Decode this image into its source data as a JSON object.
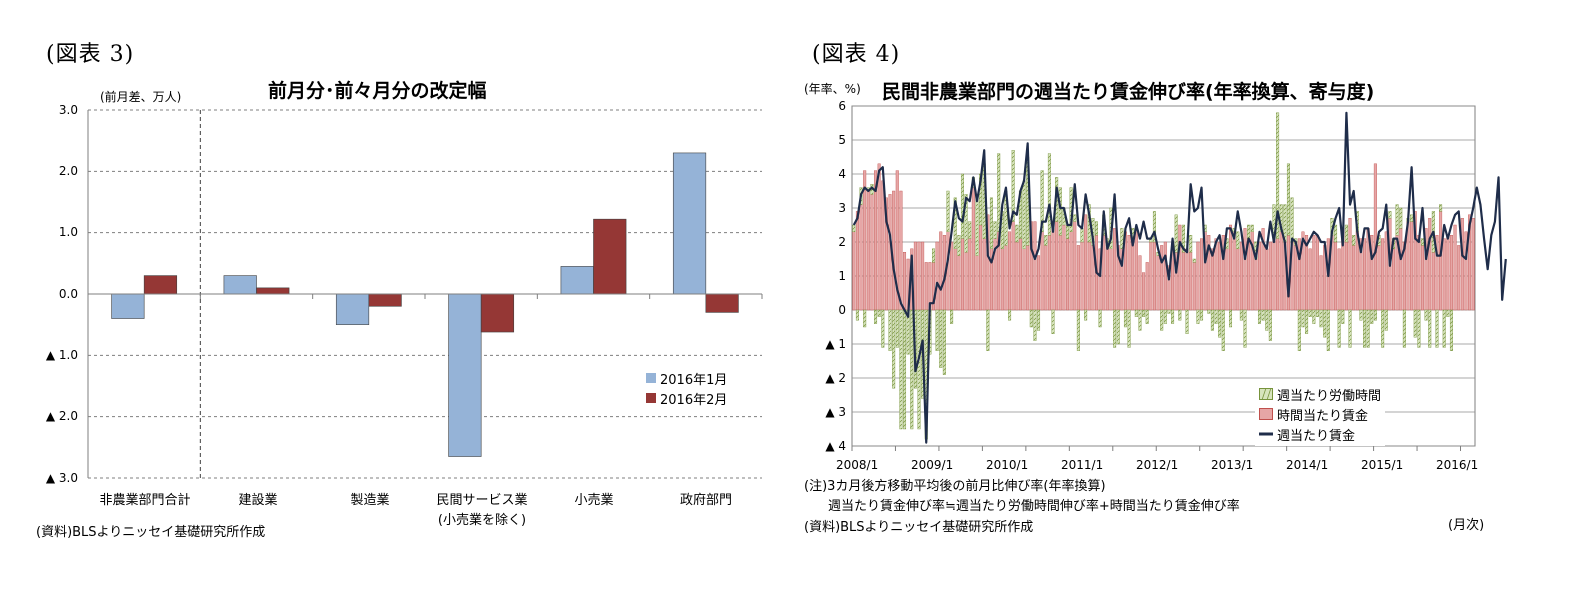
{
  "left": {
    "fig_label": "(図表 3)",
    "title": "前月分･前々月分の改定幅",
    "unit": "(前月差、万人)",
    "source": "(資料)BLSよりニッセイ基礎研究所作成",
    "ytick_labels": [
      "3.0",
      "2.0",
      "1.0",
      "0.0",
      "▲ 1.0",
      "▲ 2.0",
      "▲ 3.0"
    ],
    "category_labels": [
      "非農業部門合計",
      "建設業",
      "製造業",
      "民間サービス業",
      "小売業",
      "政府部門"
    ],
    "category_sublabel": "(小売業を除く)",
    "legend": [
      "2016年1月",
      "2016年2月"
    ]
  },
  "right": {
    "fig_label": "(図表 4)",
    "title": "民間非農業部門の週当たり賃金伸び率(年率換算、寄与度)",
    "unit": "(年率、%)",
    "ytick_labels": [
      "6",
      "5",
      "4",
      "3",
      "2",
      "1",
      "0",
      "▲ 1",
      "▲ 2",
      "▲ 3",
      "▲ 4"
    ],
    "xtick_labels": [
      "2008/1",
      "2009/1",
      "2010/1",
      "2011/1",
      "2012/1",
      "2013/1",
      "2014/1",
      "2015/1",
      "2016/1"
    ],
    "legend": [
      "週当たり労働時間",
      "時間当たり賃金",
      "週当たり賃金"
    ],
    "note1": "(注)3カ月後方移動平均後の前月比伸び率(年率換算)",
    "note2": "週当たり賃金伸び率≒週当たり労働時間伸び率+時間当たり賃金伸び率",
    "source": "(資料)BLSよりニッセイ基礎研究所作成",
    "month_label": "(月次)"
  },
  "colors": {
    "jan": "#95b3d7",
    "feb": "#953735",
    "hours_fill": "#d7e4bd",
    "hours_stroke": "#77933c",
    "hourly_fill": "#e6a6a6",
    "hourly_stroke": "#c0504d",
    "weekly_line": "#1f2d4a"
  },
  "chart_data": [
    {
      "type": "bar",
      "title": "前月分･前々月分の改定幅",
      "ylabel": "(前月差、万人)",
      "ylim": [
        -3.0,
        3.0
      ],
      "categories": [
        "非農業部門合計",
        "建設業",
        "製造業",
        "民間サービス業(小売業を除く)",
        "小売業",
        "政府部門"
      ],
      "series": [
        {
          "name": "2016年1月",
          "values": [
            -0.4,
            0.3,
            -0.5,
            -2.65,
            0.45,
            2.3
          ]
        },
        {
          "name": "2016年2月",
          "values": [
            0.3,
            0.1,
            -0.2,
            -0.62,
            1.22,
            -0.3
          ]
        }
      ],
      "legend_position": "bottom-right",
      "grid": true
    },
    {
      "type": "bar",
      "title": "民間非農業部門の週当たり賃金伸び率(年率換算、寄与度)",
      "ylabel": "(年率、%)",
      "xlabel": "(月次)",
      "ylim": [
        -4,
        6
      ],
      "x_start": "2008/1",
      "x_end": "2016/2",
      "series": [
        {
          "name": "週当たり労働時間",
          "type": "bar",
          "values": [
            0.2,
            -0.3,
            0.5,
            -0.5,
            0.1,
            0.3,
            -0.4,
            -0.2,
            -1.1,
            0.0,
            -1.2,
            -2.3,
            -1.1,
            -3.5,
            -3.5,
            -1.3,
            -3.5,
            -2.3,
            -3.5,
            -2.6,
            -3.8,
            -1.3,
            0.4,
            -1.2,
            -1.7,
            -1.9,
            1.2,
            -0.4,
            1.5,
            0.6,
            1.9,
            1.7,
            0.5,
            0.3,
            1.8,
            1.5,
            2.2,
            -1.2,
            1.5,
            0.5,
            2.3,
            1.1,
            1.6,
            -0.3,
            2.1,
            0.5,
            1.4,
            2.0,
            2.6,
            -0.5,
            -0.9,
            -0.6,
            1.8,
            0.3,
            2.4,
            -0.7,
            1.3,
            1.4,
            0.5,
            0.4,
            1.3,
            0.2,
            -1.2,
            0.4,
            -0.3,
            1.1,
            0.8,
            0.4,
            -0.5,
            0.6,
            0.2,
            1.2,
            -1.1,
            -1.0,
            0.6,
            -0.5,
            -1.1,
            0.3,
            -0.2,
            -0.6,
            -0.2,
            -0.4,
            0.1,
            0.9,
            0.1,
            -0.6,
            -0.4,
            -0.1,
            -0.4,
            1.1,
            -0.3,
            0.8,
            -0.7,
            0.5,
            0.1,
            -0.4,
            -0.3,
            0.2,
            -0.1,
            -0.6,
            -0.4,
            -0.8,
            -1.2,
            0.3,
            -0.5,
            0.1,
            0.5,
            -0.3,
            -1.1,
            0.4,
            0.2,
            0.5,
            -0.4,
            -0.3,
            -0.6,
            -0.9,
            1.0,
            3.7,
            0.8,
            1.1,
            2.1,
            1.3,
            0.2,
            -1.2,
            -0.5,
            -0.7,
            -0.2,
            -0.4,
            -0.2,
            -0.5,
            -0.8,
            -1.2,
            0.5,
            0.5,
            -1.1,
            -0.4,
            0.5,
            -1.1,
            0.3,
            0.6,
            -0.3,
            -1.1,
            -1.1,
            -0.4,
            -0.3,
            0.3,
            -1.1,
            -0.6,
            0.2,
            0.3,
            0.9,
            0.6,
            -1.1,
            0.1,
            0.2,
            -0.8,
            -1.1,
            0.2,
            -0.3,
            -1.1,
            1.2,
            -1.1,
            0.2,
            -1.1,
            -0.2,
            -1.2
          ]
        },
        {
          "name": "時間当たり賃金",
          "type": "bar",
          "values": [
            2.3,
            2.9,
            3.1,
            4.1,
            3.5,
            3.4,
            4.1,
            4.3,
            3.8,
            3.3,
            3.4,
            3.5,
            4.1,
            3.5,
            1.7,
            1.5,
            1.8,
            2.0,
            2.0,
            2.0,
            1.4,
            1.4,
            1.4,
            2.0,
            2.3,
            2.2,
            2.3,
            2.0,
            1.8,
            1.6,
            2.1,
            1.7,
            2.1,
            3.6,
            1.6,
            2.5,
            2.1,
            2.8,
            1.8,
            2.1,
            2.3,
            1.8,
            1.9,
            2.3,
            2.6,
            2.0,
            2.1,
            1.8,
            1.9,
            2.6,
            2.6,
            1.6,
            2.3,
            1.9,
            2.2,
            2.4,
            2.6,
            2.2,
            2.5,
            2.1,
            2.3,
            2.6,
            1.9,
            2.0,
            2.8,
            2.0,
            1.9,
            2.2,
            1.8,
            2.2,
            1.9,
            1.8,
            2.4,
            1.9,
            1.8,
            2.3,
            2.2,
            2.1,
            2.4,
            1.6,
            1.1,
            1.4,
            2.0,
            2.0,
            1.6,
            1.9,
            2.0,
            1.3,
            1.9,
            1.7,
            2.5,
            1.7,
            1.8,
            1.7,
            1.4,
            2.0,
            2.1,
            2.3,
            2.2,
            1.8,
            2.1,
            2.0,
            2.2,
            1.8,
            2.5,
            2.3,
            1.8,
            2.0,
            2.4,
            2.1,
            2.3,
            1.5,
            2.0,
            2.4,
            1.8,
            2.0,
            2.1,
            2.1,
            2.3,
            2.0,
            2.2,
            2.0,
            1.9,
            2.1,
            2.3,
            2.2,
            1.8,
            2.2,
            2.2,
            1.6,
            1.9,
            2.1,
            2.2,
            2.0,
            1.8,
            2.4,
            2.0,
            2.7,
            1.9,
            2.3,
            2.1,
            2.1,
            2.4,
            2.2,
            4.3,
            1.9,
            2.1,
            2.3,
            2.7,
            1.8,
            2.2,
            2.4,
            2.0,
            2.6,
            2.6,
            2.9,
            2.2,
            1.9,
            2.4,
            2.7,
            1.7,
            2.2,
            2.9,
            2.1,
            2.2,
            2.2,
            2.5,
            1.9,
            2.7,
            2.3,
            2.8,
            2.7
          ]
        },
        {
          "name": "週当たり賃金",
          "type": "line",
          "values": [
            2.5,
            2.7,
            3.4,
            3.6,
            3.5,
            3.6,
            3.5,
            4.1,
            4.2,
            2.6,
            2.2,
            1.2,
            0.6,
            0.2,
            0.0,
            -0.2,
            1.6,
            -1.8,
            -1.4,
            -0.9,
            -3.9,
            0.2,
            0.2,
            0.8,
            0.6,
            0.9,
            1.5,
            2.3,
            3.2,
            2.7,
            2.6,
            3.3,
            3.2,
            3.9,
            3.2,
            3.8,
            4.7,
            1.6,
            1.4,
            1.8,
            1.9,
            3.1,
            3.6,
            2.4,
            2.9,
            2.8,
            3.5,
            3.8,
            4.9,
            1.8,
            1.5,
            1.8,
            2.6,
            2.6,
            3.1,
            2.3,
            3.6,
            3.0,
            3.0,
            2.5,
            2.5,
            3.7,
            2.5,
            2.4,
            3.4,
            2.8,
            2.1,
            1.1,
            1.0,
            2.9,
            1.8,
            2.1,
            3.4,
            1.6,
            1.3,
            2.4,
            2.7,
            1.9,
            2.5,
            2.1,
            2.6,
            2.1,
            2.1,
            2.3,
            1.8,
            1.4,
            1.6,
            0.9,
            2.1,
            1.1,
            2.0,
            1.8,
            1.7,
            3.7,
            2.9,
            3.0,
            3.6,
            1.4,
            1.9,
            1.6,
            2.0,
            2.2,
            1.5,
            2.4,
            2.4,
            2.1,
            2.9,
            2.3,
            1.5,
            2.1,
            1.9,
            1.5,
            2.3,
            2.0,
            1.8,
            2.6,
            2.0,
            2.9,
            2.4,
            2.0,
            0.4,
            2.1,
            2.0,
            1.5,
            2.1,
            1.9,
            2.1,
            2.3,
            2.2,
            2.0,
            2.0,
            1.0,
            2.3,
            2.7,
            3.0,
            1.9,
            5.8,
            3.1,
            3.5,
            2.3,
            1.7,
            2.4,
            2.4,
            1.5,
            1.7,
            2.3,
            2.4,
            3.1,
            1.3,
            2.1,
            2.1,
            1.5,
            1.8,
            2.6,
            4.2,
            2.1,
            2.0,
            3.0,
            1.5,
            2.1,
            2.3,
            1.6,
            1.6,
            2.5,
            2.1,
            2.5,
            2.8,
            2.9,
            1.6,
            1.5,
            2.5,
            3.0,
            3.6,
            3.1,
            2.1,
            1.2,
            2.2,
            2.6,
            3.9,
            0.3,
            1.5
          ]
        }
      ],
      "legend_position": "bottom-right",
      "grid": true
    }
  ]
}
